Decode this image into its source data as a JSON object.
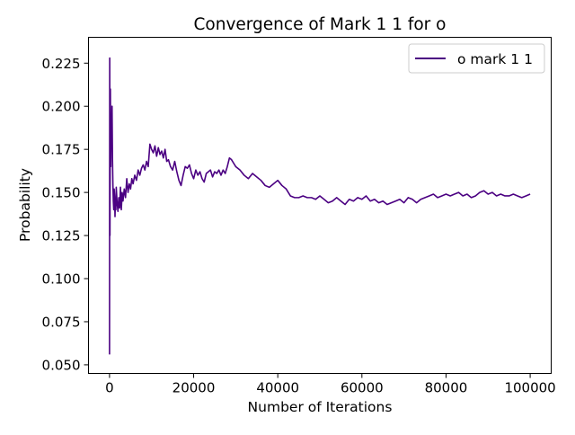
{
  "chart_data": {
    "type": "line",
    "title": "Convergence of Mark 1 1 for o",
    "xlabel": "Number of Iterations",
    "ylabel": "Probability",
    "xlim": [
      -5000,
      105000
    ],
    "ylim": [
      0.045,
      0.24
    ],
    "xticks": [
      0,
      20000,
      40000,
      60000,
      80000,
      100000
    ],
    "xtick_labels": [
      "0",
      "20000",
      "40000",
      "60000",
      "80000",
      "100000"
    ],
    "yticks": [
      0.05,
      0.075,
      0.1,
      0.125,
      0.15,
      0.175,
      0.2,
      0.225
    ],
    "ytick_labels": [
      "0.050",
      "0.075",
      "0.100",
      "0.125",
      "0.150",
      "0.175",
      "0.200",
      "0.225"
    ],
    "grid": false,
    "legend_position": "top-right",
    "series": [
      {
        "name": "o mark 1 1",
        "color": "#4b0082",
        "x": [
          0,
          50,
          100,
          200,
          300,
          400,
          500,
          600,
          700,
          800,
          900,
          1000,
          1100,
          1200,
          1300,
          1400,
          1500,
          1600,
          1800,
          2000,
          2200,
          2400,
          2600,
          2800,
          3000,
          3200,
          3500,
          3800,
          4100,
          4400,
          4700,
          5000,
          5300,
          5600,
          6000,
          6400,
          6800,
          7200,
          7600,
          8000,
          8400,
          8800,
          9200,
          9600,
          10000,
          10400,
          10800,
          11200,
          11600,
          12000,
          12400,
          12800,
          13200,
          13600,
          14000,
          14500,
          15000,
          15500,
          16000,
          16500,
          17000,
          17500,
          18000,
          18500,
          19000,
          19500,
          20000,
          20500,
          21000,
          21500,
          22000,
          22500,
          23000,
          23500,
          24000,
          24500,
          25000,
          25500,
          26000,
          26500,
          27000,
          27500,
          28000,
          28500,
          29000,
          29500,
          30000,
          31000,
          32000,
          33000,
          34000,
          35000,
          36000,
          37000,
          38000,
          39000,
          40000,
          41000,
          42000,
          43000,
          44000,
          45000,
          46000,
          47000,
          48000,
          49000,
          50000,
          51000,
          52000,
          53000,
          54000,
          55000,
          56000,
          57000,
          58000,
          59000,
          60000,
          61000,
          62000,
          63000,
          64000,
          65000,
          66000,
          67000,
          68000,
          69000,
          70000,
          71000,
          72000,
          73000,
          74000,
          75000,
          76000,
          77000,
          78000,
          79000,
          80000,
          81000,
          82000,
          83000,
          84000,
          85000,
          86000,
          87000,
          88000,
          89000,
          90000,
          91000,
          92000,
          93000,
          94000,
          95000,
          96000,
          97000,
          98000,
          99000,
          100000
        ],
        "values": [
          0.056,
          0.228,
          0.125,
          0.21,
          0.165,
          0.19,
          0.18,
          0.2,
          0.17,
          0.155,
          0.145,
          0.14,
          0.152,
          0.148,
          0.136,
          0.145,
          0.14,
          0.153,
          0.144,
          0.139,
          0.147,
          0.141,
          0.153,
          0.14,
          0.15,
          0.145,
          0.152,
          0.147,
          0.158,
          0.15,
          0.155,
          0.152,
          0.158,
          0.155,
          0.16,
          0.157,
          0.163,
          0.16,
          0.164,
          0.166,
          0.163,
          0.168,
          0.165,
          0.178,
          0.175,
          0.173,
          0.177,
          0.171,
          0.176,
          0.172,
          0.174,
          0.17,
          0.175,
          0.168,
          0.169,
          0.165,
          0.163,
          0.168,
          0.162,
          0.157,
          0.154,
          0.16,
          0.165,
          0.164,
          0.166,
          0.161,
          0.158,
          0.163,
          0.16,
          0.162,
          0.158,
          0.156,
          0.161,
          0.162,
          0.163,
          0.159,
          0.162,
          0.161,
          0.163,
          0.16,
          0.163,
          0.161,
          0.165,
          0.17,
          0.169,
          0.167,
          0.165,
          0.163,
          0.16,
          0.158,
          0.161,
          0.159,
          0.157,
          0.154,
          0.153,
          0.155,
          0.157,
          0.154,
          0.152,
          0.148,
          0.147,
          0.147,
          0.148,
          0.147,
          0.147,
          0.146,
          0.148,
          0.146,
          0.144,
          0.145,
          0.147,
          0.145,
          0.143,
          0.146,
          0.145,
          0.147,
          0.146,
          0.148,
          0.145,
          0.146,
          0.144,
          0.145,
          0.143,
          0.144,
          0.145,
          0.146,
          0.144,
          0.147,
          0.146,
          0.144,
          0.146,
          0.147,
          0.148,
          0.149,
          0.147,
          0.148,
          0.149,
          0.148,
          0.149,
          0.15,
          0.148,
          0.149,
          0.147,
          0.148,
          0.15,
          0.151,
          0.149,
          0.15,
          0.148,
          0.149,
          0.148,
          0.148,
          0.149,
          0.148,
          0.147,
          0.148,
          0.149
        ]
      }
    ]
  }
}
